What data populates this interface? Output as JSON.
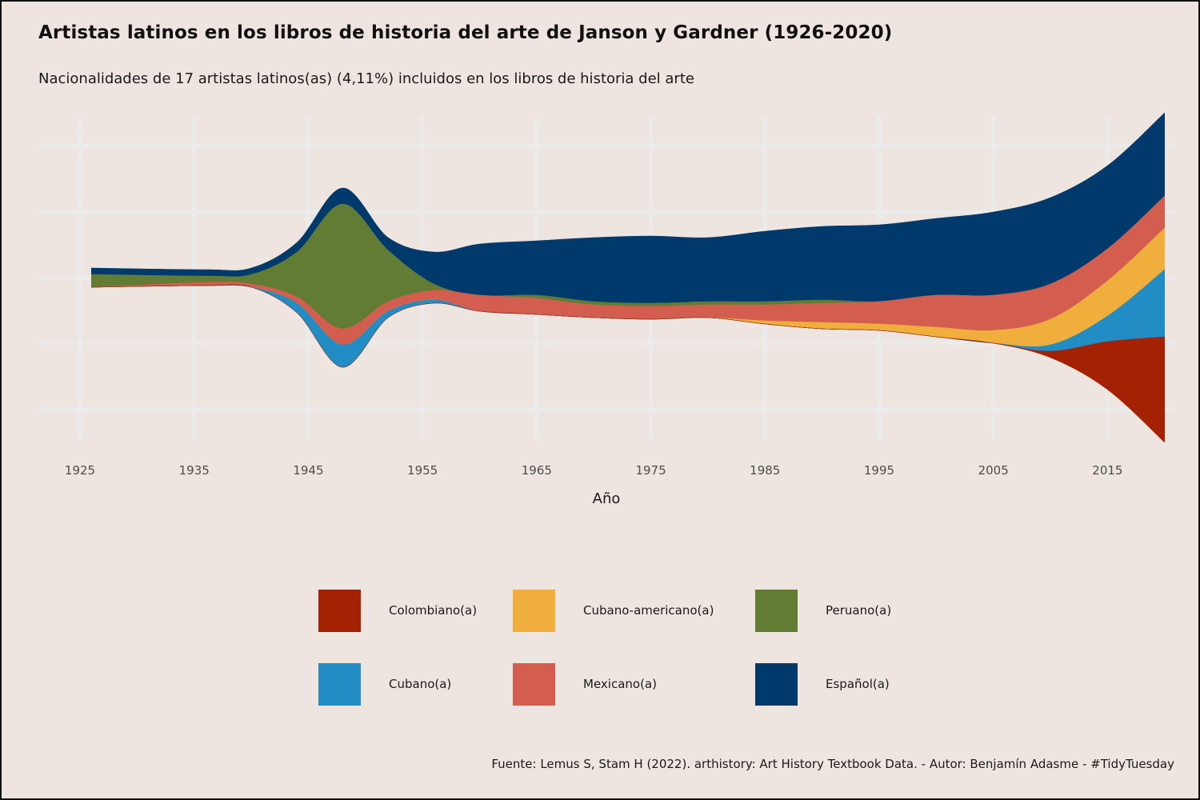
{
  "header": {
    "title": "Artistas latinos en los libros de historia del arte de Janson y Gardner (1926-2020)",
    "subtitle": "Nacionalidades de 17 artistas latinos(as) (4,11%) incluidos en los libros de historia del arte"
  },
  "caption": "Fuente: Lemus S, Stam H (2022). arthistory: Art History Textbook Data. - Autor: Benjamín Adasme - #TidyTuesday",
  "chart_data": {
    "type": "area",
    "subtype": "streamgraph",
    "xlabel": "Año",
    "ylabel": "",
    "xlim": [
      1925,
      2021
    ],
    "x_ticks": [
      1925,
      1935,
      1945,
      1955,
      1965,
      1975,
      1985,
      1995,
      2005,
      2015
    ],
    "grid": true,
    "legend_position": "bottom",
    "x": [
      1926,
      1936,
      1940,
      1944,
      1948,
      1952,
      1956,
      1960,
      1965,
      1970,
      1975,
      1980,
      1985,
      1990,
      1995,
      2000,
      2005,
      2010,
      2015,
      2020
    ],
    "series": [
      {
        "name": "Español(a)",
        "color": "#00396B",
        "values": [
          0.1,
          0.1,
          0.1,
          0.15,
          0.25,
          0.2,
          0.5,
          0.8,
          0.85,
          1.0,
          1.05,
          1.0,
          1.1,
          1.15,
          1.2,
          1.2,
          1.3,
          1.35,
          1.3,
          1.3
        ]
      },
      {
        "name": "Peruano(a)",
        "color": "#627C33",
        "values": [
          0.2,
          0.1,
          0.15,
          0.7,
          1.95,
          0.8,
          0.1,
          0.0,
          0.05,
          0.05,
          0.05,
          0.05,
          0.05,
          0.05,
          0.0,
          0.0,
          0.0,
          0.0,
          0.0,
          0.0
        ]
      },
      {
        "name": "Mexicano(a)",
        "color": "#D35E50",
        "values": [
          0.0,
          0.05,
          0.05,
          0.1,
          0.25,
          0.15,
          0.15,
          0.25,
          0.25,
          0.2,
          0.2,
          0.2,
          0.25,
          0.3,
          0.35,
          0.5,
          0.55,
          0.55,
          0.5,
          0.5
        ]
      },
      {
        "name": "Cubano-americano(a)",
        "color": "#F0AE3C",
        "values": [
          0.0,
          0.0,
          0.0,
          0.0,
          0.0,
          0.0,
          0.0,
          0.0,
          0.0,
          0.0,
          0.0,
          0.0,
          0.05,
          0.1,
          0.1,
          0.15,
          0.2,
          0.4,
          0.55,
          0.65
        ]
      },
      {
        "name": "Cubano(a)",
        "color": "#228CC4",
        "values": [
          0.0,
          0.0,
          0.0,
          0.15,
          0.35,
          0.1,
          0.05,
          0.0,
          0.0,
          0.0,
          0.0,
          0.0,
          0.0,
          0.0,
          0.0,
          0.0,
          0.0,
          0.1,
          0.4,
          1.05
        ]
      },
      {
        "name": "Colombiano(a)",
        "color": "#A42103",
        "values": [
          0.0,
          0.0,
          0.0,
          0.0,
          0.0,
          0.0,
          0.0,
          0.0,
          0.0,
          0.0,
          0.0,
          0.0,
          0.0,
          0.0,
          0.0,
          0.0,
          0.0,
          0.1,
          0.75,
          1.65
        ]
      }
    ]
  },
  "legend": {
    "items": [
      {
        "label": "Colombiano(a)",
        "color": "#A42103"
      },
      {
        "label": "Cubano-americano(a)",
        "color": "#F0AE3C"
      },
      {
        "label": "Peruano(a)",
        "color": "#627C33"
      },
      {
        "label": "Cubano(a)",
        "color": "#228CC4"
      },
      {
        "label": "Mexicano(a)",
        "color": "#D35E50"
      },
      {
        "label": "Español(a)",
        "color": "#00396B"
      }
    ]
  }
}
